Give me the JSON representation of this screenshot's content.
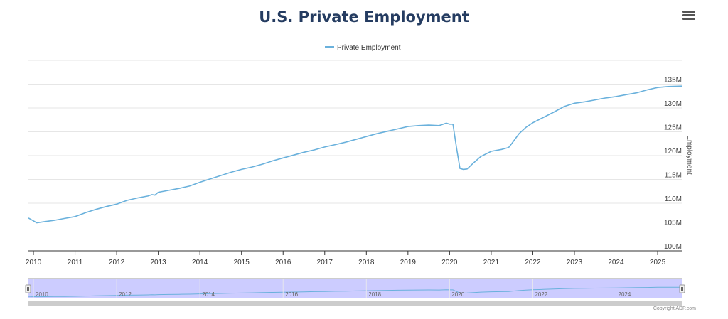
{
  "header": {
    "title": "U.S. Private Employment",
    "menu_icon": "hamburger-menu-icon"
  },
  "credit": "Copyright ADP.com",
  "colors": {
    "line": "#6ab1dc",
    "title": "#253c61",
    "navigator_fill": "#ccccff"
  },
  "chart_data": {
    "type": "line",
    "title": "U.S. Private Employment",
    "xlabel": "",
    "ylabel": "Employment",
    "legend": {
      "position": "top-center",
      "entries": [
        "Private Employment"
      ]
    },
    "grid": true,
    "xlim": [
      2009.88,
      2025.58
    ],
    "ylim": [
      100,
      140
    ],
    "x_ticks": [
      "2010",
      "2011",
      "2012",
      "2013",
      "2014",
      "2015",
      "2016",
      "2017",
      "2018",
      "2019",
      "2020",
      "2021",
      "2022",
      "2023",
      "2024",
      "2025"
    ],
    "y_ticks": [
      "100M",
      "105M",
      "110M",
      "115M",
      "120M",
      "125M",
      "130M",
      "135M"
    ],
    "navigator_labels": [
      "2010",
      "2012",
      "2014",
      "2016",
      "2018",
      "2020",
      "2022",
      "2024"
    ],
    "series": [
      {
        "name": "Private Employment",
        "unit": "millions",
        "x": [
          2009.88,
          2010.0,
          2010.08,
          2010.25,
          2010.5,
          2010.75,
          2011.0,
          2011.25,
          2011.5,
          2011.75,
          2012.0,
          2012.25,
          2012.5,
          2012.75,
          2012.85,
          2012.92,
          2013.0,
          2013.25,
          2013.5,
          2013.75,
          2014.0,
          2014.25,
          2014.5,
          2014.75,
          2015.0,
          2015.25,
          2015.5,
          2015.75,
          2016.0,
          2016.25,
          2016.5,
          2016.75,
          2017.0,
          2017.25,
          2017.5,
          2017.75,
          2018.0,
          2018.25,
          2018.5,
          2018.75,
          2019.0,
          2019.25,
          2019.5,
          2019.75,
          2019.92,
          2020.0,
          2020.08,
          2020.17,
          2020.25,
          2020.33,
          2020.42,
          2020.58,
          2020.75,
          2021.0,
          2021.25,
          2021.42,
          2021.5,
          2021.67,
          2021.83,
          2022.0,
          2022.25,
          2022.5,
          2022.75,
          2023.0,
          2023.25,
          2023.5,
          2023.75,
          2024.0,
          2024.25,
          2024.5,
          2024.75,
          2025.0,
          2025.25,
          2025.58
        ],
        "y": [
          106.9,
          106.3,
          105.9,
          106.1,
          106.4,
          106.8,
          107.2,
          108.0,
          108.7,
          109.3,
          109.8,
          110.6,
          111.1,
          111.5,
          111.8,
          111.7,
          112.3,
          112.7,
          113.1,
          113.6,
          114.4,
          115.1,
          115.8,
          116.5,
          117.1,
          117.6,
          118.2,
          118.9,
          119.5,
          120.1,
          120.7,
          121.2,
          121.8,
          122.3,
          122.8,
          123.4,
          124.0,
          124.6,
          125.1,
          125.6,
          126.1,
          126.3,
          126.4,
          126.3,
          126.8,
          126.6,
          126.6,
          121.5,
          117.3,
          117.1,
          117.2,
          118.5,
          119.8,
          120.9,
          121.3,
          121.7,
          122.6,
          124.6,
          125.9,
          126.9,
          128.0,
          129.1,
          130.3,
          131.0,
          131.3,
          131.7,
          132.1,
          132.4,
          132.8,
          133.2,
          133.8,
          134.3,
          134.5,
          134.6
        ]
      }
    ]
  }
}
